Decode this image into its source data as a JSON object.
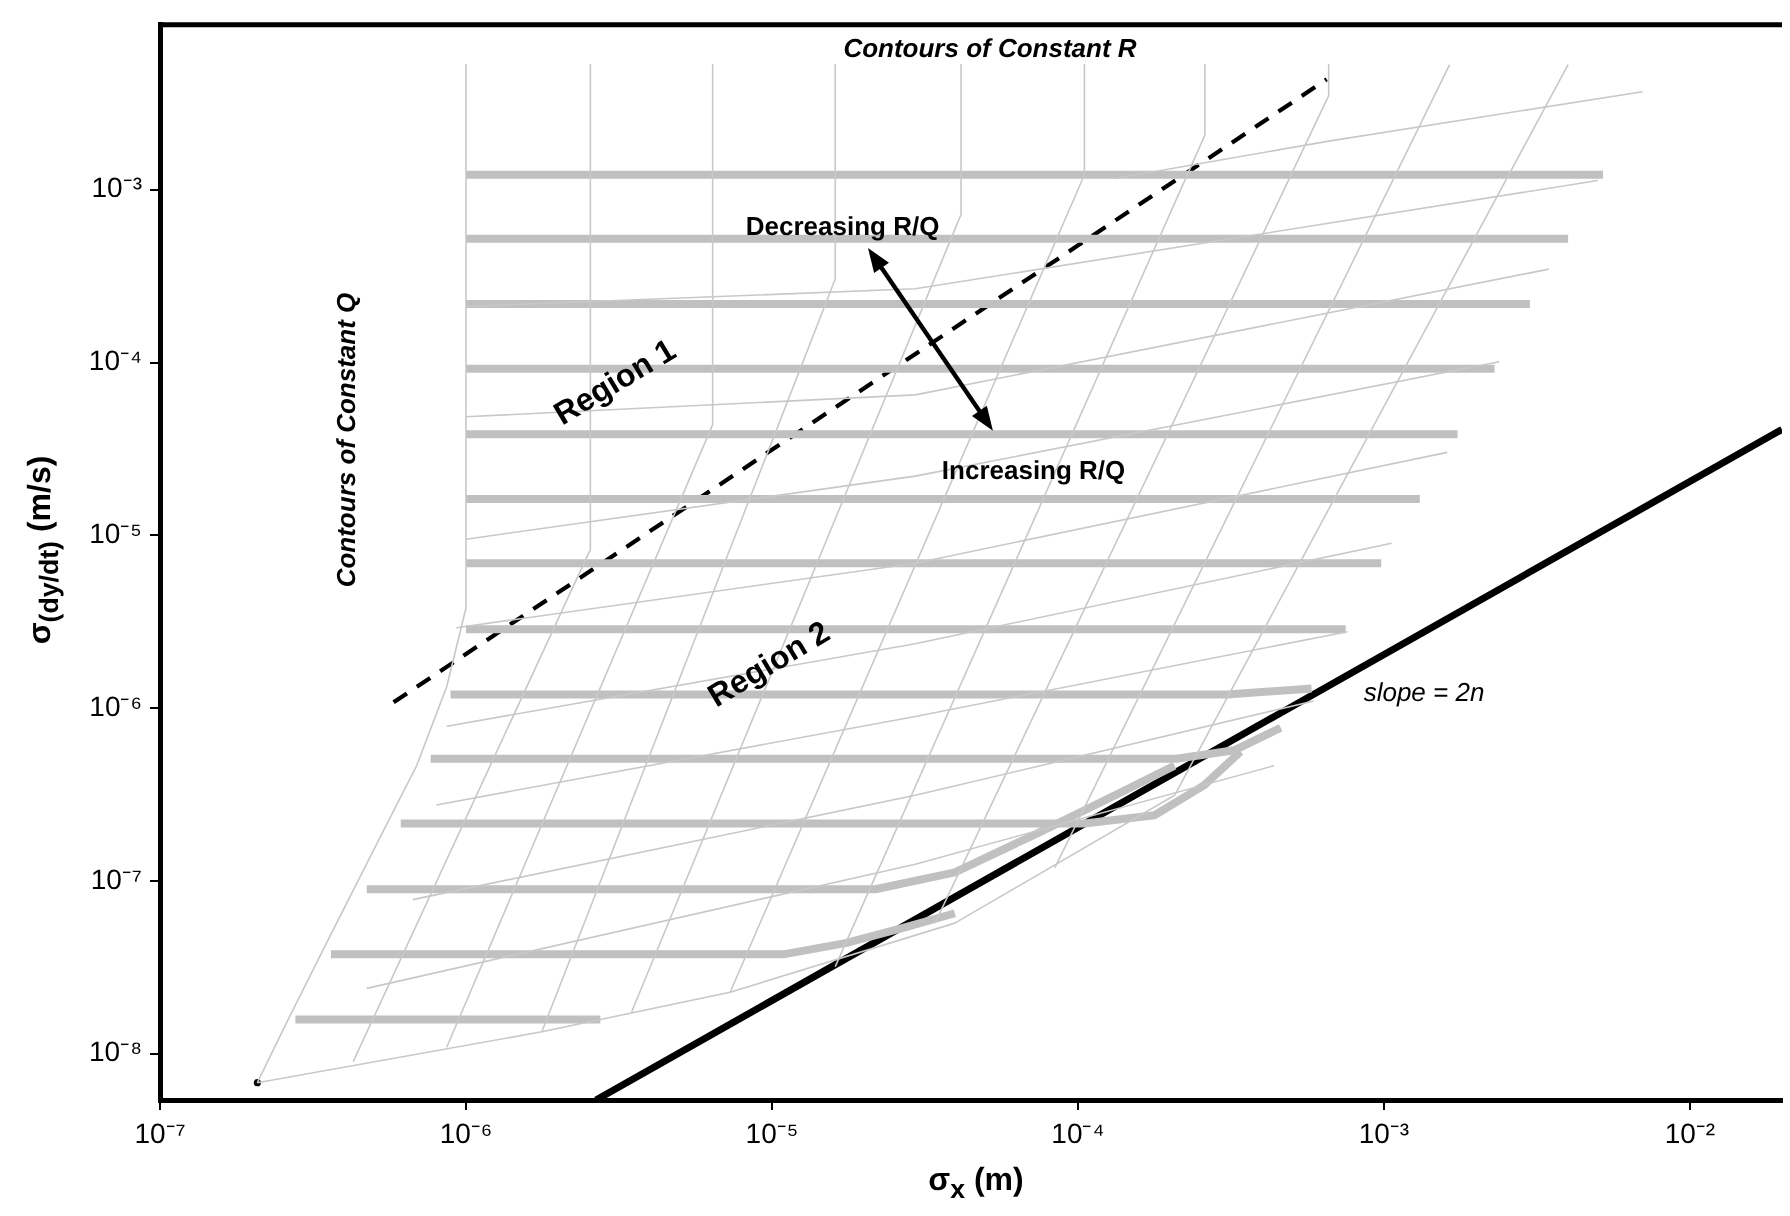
{
  "chart_data": {
    "type": "line",
    "xlabel": "σ$_{x}$ (m)",
    "ylabel": "σ$_{(dy/dt)}$ (m/s)",
    "log": "xy",
    "xlim": [
      1e-07,
      0.02
    ],
    "ylim": [
      5.4e-09,
      0.009
    ],
    "xticks": [
      {
        "value": 1e-07,
        "label": "10⁻⁷"
      },
      {
        "value": 1e-06,
        "label": "10⁻⁶"
      },
      {
        "value": 1e-05,
        "label": "10⁻⁵"
      },
      {
        "value": 0.0001,
        "label": "10⁻⁴"
      },
      {
        "value": 0.001,
        "label": "10⁻³"
      },
      {
        "value": 0.01,
        "label": "10⁻²"
      }
    ],
    "yticks": [
      {
        "value": 1e-08,
        "label": "10⁻⁸"
      },
      {
        "value": 1e-07,
        "label": "10⁻⁷"
      },
      {
        "value": 1e-06,
        "label": "10⁻⁶"
      },
      {
        "value": 1e-05,
        "label": "10⁻⁵"
      },
      {
        "value": 0.0001,
        "label": "10⁻⁴"
      },
      {
        "value": 0.001,
        "label": "10⁻³"
      }
    ],
    "grid": false,
    "legend": false,
    "marker": "none",
    "annotations": [
      "Contours of Constant R",
      "Contours of Constant Q",
      {
        "text": "Decreasing R/Q",
        "x": 2.07e-05,
        "y": 0.00046
      },
      {
        "text": "Increasing R/Q",
        "x": 5.3e-05,
        "y": 4.03e-05
      },
      "Region 1",
      "Region 2",
      "slope = 2n"
    ],
    "series": [
      {
        "color": "#c8c8c8",
        "x": [
          1e-06,
          1e-06,
          8.65e-07,
          6.9e-07,
          5.1e-07,
          3.5e-07,
          2.6e-07,
          2.08e-07
        ],
        "values": [
          0.0053,
          3.8e-06,
          1.33e-06,
          4.65e-07,
          1.63e-07,
          4.37e-08,
          1.53e-08,
          6.8e-09
        ]
      },
      {
        "color": "#c8c8c8",
        "x": [
          2.55e-06,
          2.55e-06,
          4.28e-07
        ],
        "values": [
          0.0053,
          8.3e-06,
          9e-09
        ]
      },
      {
        "color": "#c8c8c8",
        "x": [
          6.4e-06,
          6.4e-06,
          8.65e-07
        ],
        "values": [
          0.0053,
          4.37e-05,
          1.09e-08
        ]
      },
      {
        "color": "#c8c8c8",
        "x": [
          1.61e-05,
          1.61e-05,
          1.77e-06
        ],
        "values": [
          0.0053,
          0.000304,
          1.34e-08
        ]
      },
      {
        "color": "#c8c8c8",
        "x": [
          4.15e-05,
          4.15e-05,
          3.48e-06
        ],
        "values": [
          0.0053,
          0.00072,
          1.75e-08
        ]
      },
      {
        "color": "#c8c8c8",
        "x": [
          0.000105,
          0.000105,
          7.3e-06
        ],
        "values": [
          0.0053,
          0.00122,
          2.27e-08
        ]
      },
      {
        "color": "#c8c8c8",
        "x": [
          0.00026,
          0.00026,
          1.61e-05
        ],
        "values": [
          0.0053,
          0.00207,
          3.19e-08
        ]
      },
      {
        "color": "#c8c8c8",
        "x": [
          0.00066,
          0.00066,
          3.41e-05
        ],
        "values": [
          0.0053,
          0.0035,
          5.7e-08
        ]
      },
      {
        "color": "#c8c8c8",
        "x": [
          0.00164,
          8.4e-05
        ],
        "values": [
          0.0053,
          1.19e-07
        ]
      },
      {
        "color": "#c8c8c8",
        "x": [
          0.004,
          0.000207
        ],
        "values": [
          0.0053,
          3.13e-07
        ]
      },
      {
        "color": "#c8c8c8",
        "x": [
          2.08e-07,
          1.77e-06,
          7.3e-06,
          3.96e-05,
          0.000207
        ],
        "values": [
          6.8e-09,
          1.34e-08,
          2.27e-08,
          5.7e-08,
          3.13e-07
        ]
      },
      {
        "color": "#c8c8c8",
        "x": [
          4.74e-07,
          2.94e-05,
          0.000438
        ],
        "values": [
          2.39e-08,
          1.25e-07,
          4.65e-07
        ]
      },
      {
        "color": "#c8c8c8",
        "x": [
          6.7e-07,
          2.94e-05,
          0.00059
        ],
        "values": [
          7.8e-08,
          3.13e-07,
          1.1e-06
        ]
      },
      {
        "color": "#c8c8c8",
        "x": [
          8e-07,
          2.94e-05,
          0.00076
        ],
        "values": [
          2.75e-07,
          8.95e-07,
          2.77e-06
        ]
      },
      {
        "color": "#c8c8c8",
        "x": [
          8.65e-07,
          2.94e-05,
          0.00106
        ],
        "values": [
          7.85e-07,
          2.36e-06,
          9e-06
        ]
      },
      {
        "color": "#c8c8c8",
        "x": [
          9.3e-07,
          2.94e-05,
          0.00161
        ],
        "values": [
          2.92e-06,
          6.9e-06,
          3.02e-05
        ]
      },
      {
        "color": "#c8c8c8",
        "x": [
          1e-06,
          2.94e-05,
          0.00238
        ],
        "values": [
          9.5e-06,
          2.2e-05,
          0.000101
        ]
      },
      {
        "color": "#c8c8c8",
        "x": [
          1e-06,
          2.94e-05,
          0.00346
        ],
        "values": [
          4.85e-05,
          6.5e-05,
          0.000347
        ]
      },
      {
        "color": "#c8c8c8",
        "x": [
          1e-06,
          2.94e-05,
          0.005
        ],
        "values": [
          0.000211,
          0.000267,
          0.00113
        ]
      },
      {
        "color": "#c8c8c8",
        "x": [
          0.000132,
          0.00066,
          0.007
        ],
        "values": [
          0.00116,
          0.00191,
          0.00369
        ]
      },
      {
        "color": "#c0c0c0",
        "x": [
          1e-06,
          0.0052
        ],
        "values": [
          0.00122,
          0.00122
        ]
      },
      {
        "color": "#c0c0c0",
        "x": [
          1e-06,
          0.004
        ],
        "values": [
          0.00052,
          0.00052
        ]
      },
      {
        "color": "#c0c0c0",
        "x": [
          1e-06,
          0.003
        ],
        "values": [
          0.000218,
          0.000218
        ]
      },
      {
        "color": "#c0c0c0",
        "x": [
          1e-06,
          0.0023
        ],
        "values": [
          9.2e-05,
          9.2e-05
        ]
      },
      {
        "color": "#c0c0c0",
        "x": [
          1e-06,
          0.00174
        ],
        "values": [
          3.85e-05,
          3.85e-05
        ]
      },
      {
        "color": "#c0c0c0",
        "x": [
          1e-06,
          0.00131
        ],
        "values": [
          1.62e-05,
          1.62e-05
        ]
      },
      {
        "color": "#c0c0c0",
        "x": [
          1e-06,
          0.00098
        ],
        "values": [
          6.9e-06,
          6.9e-06
        ]
      },
      {
        "color": "#c0c0c0",
        "x": [
          1e-06,
          0.00075
        ],
        "values": [
          2.86e-06,
          2.86e-06
        ]
      },
      {
        "color": "#c0c0c0",
        "x": [
          8.9e-07,
          0.000308,
          0.00058
        ],
        "values": [
          1.2e-06,
          1.2e-06,
          1.3e-06
        ]
      },
      {
        "color": "#c0c0c0",
        "x": [
          7.67e-07,
          0.00021,
          0.000324,
          0.00046
        ],
        "values": [
          5.1e-07,
          5.1e-07,
          5.7e-07,
          7.7e-07
        ]
      },
      {
        "color": "#c0c0c0",
        "x": [
          6.12e-07,
          0.000105,
          0.000178,
          0.000258,
          0.00034
        ],
        "values": [
          2.15e-07,
          2.15e-07,
          2.4e-07,
          3.57e-07,
          5.6e-07
        ]
      },
      {
        "color": "#c0c0c0",
        "x": [
          4.74e-07,
          2.18e-05,
          3.96e-05,
          7.2e-05,
          0.000132,
          0.000207
        ],
        "values": [
          8.95e-08,
          8.95e-08,
          1.12e-07,
          1.85e-07,
          3.13e-07,
          4.65e-07
        ]
      },
      {
        "color": "#c0c0c0",
        "x": [
          3.62e-07,
          1.1e-05,
          1.74e-05,
          2.74e-05,
          3.96e-05
        ],
        "values": [
          3.77e-08,
          3.77e-08,
          4.37e-08,
          5.4e-08,
          6.5e-08
        ]
      },
      {
        "color": "#c0c0c0",
        "x": [
          2.77e-07,
          2.75e-06
        ],
        "values": [
          1.58e-08,
          1.58e-08
        ]
      },
      {
        "color": "#000000",
        "x": [
          2.66e-06,
          0.02
        ],
        "values": [
          5.4e-09,
          4.1e-05
        ]
      },
      {
        "color": "#000000",
        "line_style": "dashed",
        "x": [
          5.8e-07,
          0.00065
        ],
        "values": [
          1.08e-06,
          0.00435
        ]
      },
      {
        "type": "scatter",
        "marker": "circle",
        "color": "#000000",
        "x": [
          2.08e-07
        ],
        "values": [
          6.8e-09
        ]
      }
    ]
  }
}
